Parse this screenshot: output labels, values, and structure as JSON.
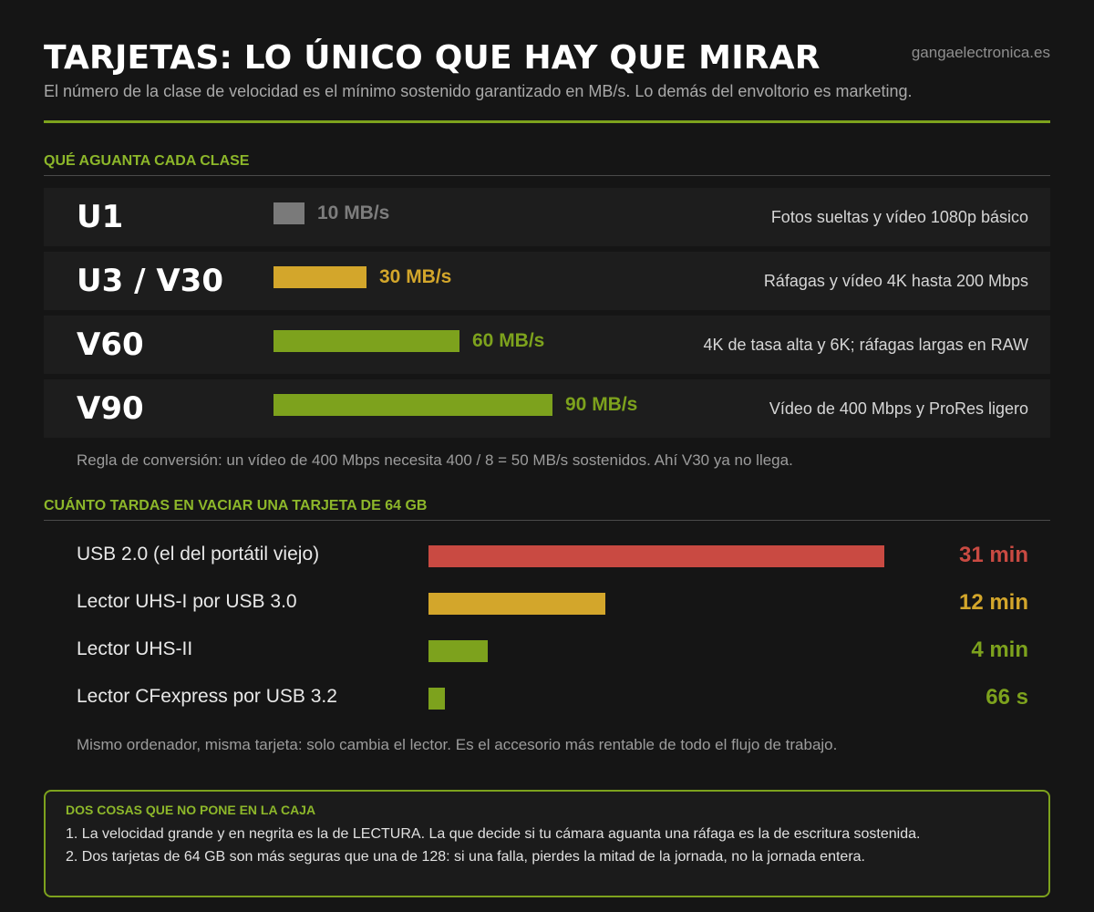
{
  "header": {
    "title": "TARJETAS: LO ÚNICO QUE HAY QUE MIRAR",
    "site": "gangaelectronica.es",
    "subtitle": "El número de la clase de velocidad es el mínimo sostenido garantizado en MB/s. Lo demás del envoltorio es marketing."
  },
  "colors": {
    "accent": "#7da21d",
    "green": "#7da21d",
    "yellow": "#d3a62b",
    "gray": "#7a7a7a",
    "red": "#c94a42"
  },
  "section1": {
    "title": "QUÉ AGUANTA CADA CLASE"
  },
  "section2": {
    "title": "CUÁNTO TARDAS EN VACIAR UNA TARJETA DE 64 GB"
  },
  "chart_data": [
    {
      "type": "bar",
      "title": "QUÉ AGUANTA CADA CLASE",
      "unit": "MB/s",
      "categories": [
        "U1",
        "U3 / V30",
        "V60",
        "V90"
      ],
      "values": [
        10,
        30,
        60,
        90
      ],
      "value_labels": [
        "10 MB/s",
        "30 MB/s",
        "60 MB/s",
        "90 MB/s"
      ],
      "descriptions": [
        "Fotos sueltas y vídeo 1080p básico",
        "Ráfagas y vídeo 4K hasta 200 Mbps",
        "4K de tasa alta y 6K; ráfagas largas en RAW",
        "Vídeo de 400 Mbps y ProRes ligero"
      ],
      "colors": [
        "#7a7a7a",
        "#d3a62b",
        "#7da21d",
        "#7da21d"
      ],
      "value_colors": [
        "#7d7d7d",
        "#d3a62b",
        "#7da21d",
        "#7da21d"
      ],
      "xlim": [
        0,
        90
      ]
    },
    {
      "type": "bar",
      "title": "CUÁNTO TARDAS EN VACIAR UNA TARJETA DE 64 GB",
      "unit": "seconds",
      "categories": [
        "USB 2.0 (el del portátil viejo)",
        "Lector UHS-I por USB 3.0",
        "Lector UHS-II",
        "Lector CFexpress por USB 3.2"
      ],
      "values": [
        1860,
        720,
        240,
        66
      ],
      "value_labels": [
        "31 min",
        "12 min",
        "4 min",
        "66 s"
      ],
      "colors": [
        "#c94a42",
        "#d3a62b",
        "#7da21d",
        "#7da21d"
      ],
      "xlim": [
        0,
        1860
      ]
    }
  ],
  "notes": {
    "conversion": "Regla de conversión: un vídeo de 400 Mbps necesita 400 / 8 = 50 MB/s sostenidos. Ahí V30 ya no llega.",
    "reader": "Mismo ordenador, misma tarjeta: solo cambia el lector. Es el accesorio más rentable de todo el flujo de trabajo."
  },
  "callout": {
    "title": "DOS COSAS QUE NO PONE EN LA CAJA",
    "items": [
      "1. La velocidad grande y en negrita es la de LECTURA. La que decide si tu cámara aguanta una ráfaga es la de escritura sostenida.",
      "2. Dos tarjetas de 64 GB son más seguras que una de 128: si una falla, pierdes la mitad de la jornada, no la jornada entera."
    ]
  }
}
